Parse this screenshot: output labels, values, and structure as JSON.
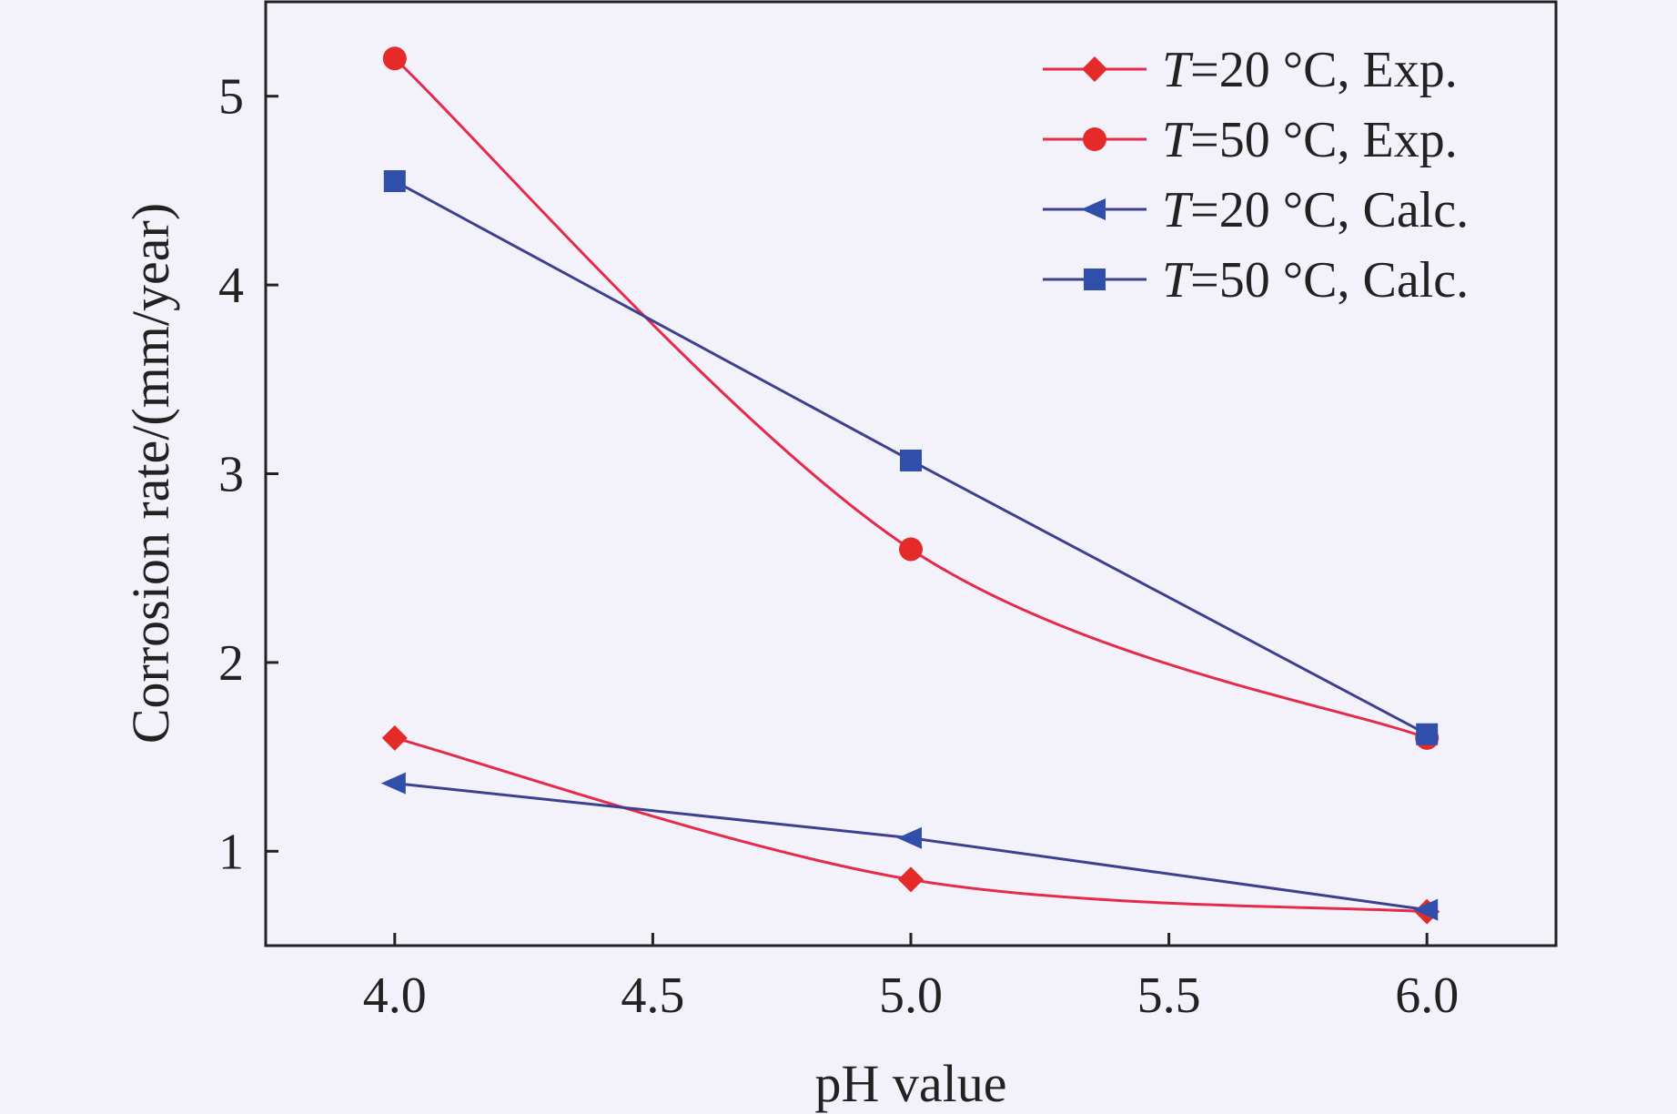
{
  "chart_data": {
    "type": "line",
    "xlabel": "pH value",
    "ylabel": "Corrosion rate/(mm/year)",
    "xlim": [
      3.75,
      6.25
    ],
    "ylim": [
      0.5,
      5.5
    ],
    "xticks": [
      "4.0",
      "4.5",
      "5.0",
      "5.5",
      "6.0"
    ],
    "xtick_values": [
      4.0,
      4.5,
      5.0,
      5.5,
      6.0
    ],
    "yticks": [
      "1",
      "2",
      "3",
      "4",
      "5"
    ],
    "ytick_values": [
      1,
      2,
      3,
      4,
      5
    ],
    "legend_position": "top-right",
    "grid": false,
    "series": [
      {
        "name_italic": "T",
        "name_rest": "=20 °C, Exp.",
        "x": [
          4.0,
          5.0,
          6.0
        ],
        "y": [
          1.6,
          0.85,
          0.68
        ],
        "color": "#e52a4b",
        "marker_color": "#e52a2a",
        "marker": "diamond",
        "smooth": true
      },
      {
        "name_italic": "T",
        "name_rest": "=50 °C, Exp.",
        "x": [
          4.0,
          5.0,
          6.0
        ],
        "y": [
          5.2,
          2.6,
          1.6
        ],
        "color": "#e52a4b",
        "marker_color": "#e52a2a",
        "marker": "circle",
        "smooth": true
      },
      {
        "name_italic": "T",
        "name_rest": "=20 °C, Calc.",
        "x": [
          4.0,
          5.0,
          6.0
        ],
        "y": [
          1.36,
          1.07,
          0.69
        ],
        "color": "#3d3f8f",
        "marker_color": "#2f4faa",
        "marker": "triangle-left",
        "smooth": false
      },
      {
        "name_italic": "T",
        "name_rest": "=50 °C, Calc.",
        "x": [
          4.0,
          5.0,
          6.0
        ],
        "y": [
          4.55,
          3.07,
          1.62
        ],
        "color": "#3d3f8f",
        "marker_color": "#2f4faa",
        "marker": "square",
        "smooth": false
      }
    ]
  }
}
